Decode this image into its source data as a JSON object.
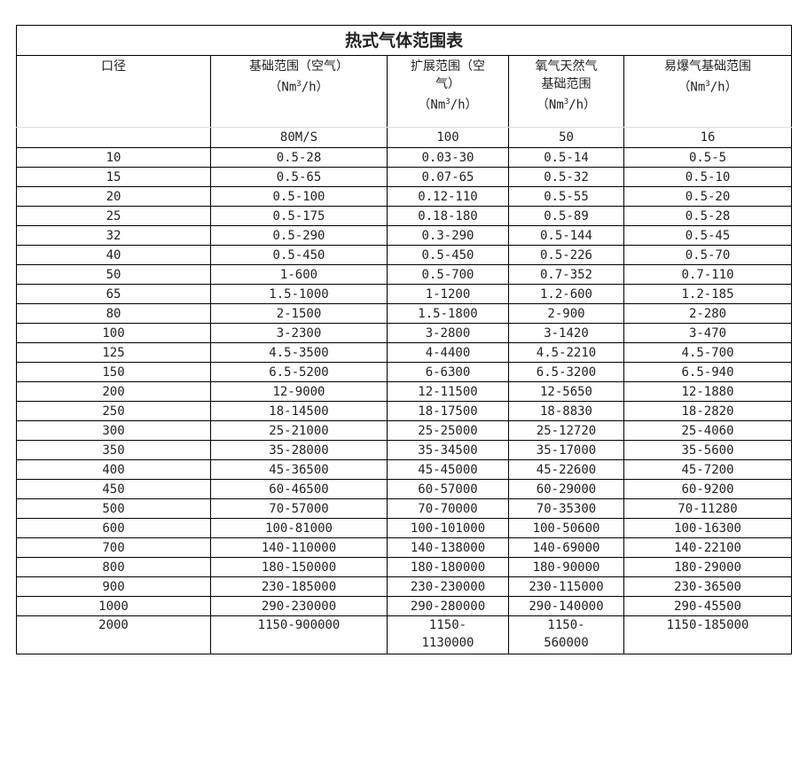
{
  "title": "热式气体范围表",
  "headers": [
    {
      "line1": "口径",
      "line2": ""
    },
    {
      "line1": "基础范围（空气）",
      "line2": "（Nm³/h）"
    },
    {
      "line1": "扩展范围（空",
      "line2": "气）",
      "line3": "（Nm³/h）"
    },
    {
      "line1": "氧气天然气",
      "line2": "基础范围",
      "line3": "（Nm³/h）"
    },
    {
      "line1": "易爆气基础范围",
      "line2": "（Nm³/h）"
    }
  ],
  "subheaders": [
    "",
    "80M/S",
    "100",
    "50",
    "16"
  ],
  "rows": [
    [
      "10",
      "0.5-28",
      "0.03-30",
      "0.5-14",
      "0.5-5"
    ],
    [
      "15",
      "0.5-65",
      "0.07-65",
      "0.5-32",
      "0.5-10"
    ],
    [
      "20",
      "0.5-100",
      "0.12-110",
      "0.5-55",
      "0.5-20"
    ],
    [
      "25",
      "0.5-175",
      "0.18-180",
      "0.5-89",
      "0.5-28"
    ],
    [
      "32",
      "0.5-290",
      "0.3-290",
      "0.5-144",
      "0.5-45"
    ],
    [
      "40",
      "0.5-450",
      "0.5-450",
      "0.5-226",
      "0.5-70"
    ],
    [
      "50",
      "1-600",
      "0.5-700",
      "0.7-352",
      "0.7-110"
    ],
    [
      "65",
      "1.5-1000",
      "1-1200",
      "1.2-600",
      "1.2-185"
    ],
    [
      "80",
      "2-1500",
      "1.5-1800",
      "2-900",
      "2-280"
    ],
    [
      "100",
      "3-2300",
      "3-2800",
      "3-1420",
      "3-470"
    ],
    [
      "125",
      "4.5-3500",
      "4-4400",
      "4.5-2210",
      "4.5-700"
    ],
    [
      "150",
      "6.5-5200",
      "6-6300",
      "6.5-3200",
      "6.5-940"
    ],
    [
      "200",
      "12-9000",
      "12-11500",
      "12-5650",
      "12-1880"
    ],
    [
      "250",
      "18-14500",
      "18-17500",
      "18-8830",
      "18-2820"
    ],
    [
      "300",
      "25-21000",
      "25-25000",
      "25-12720",
      "25-4060"
    ],
    [
      "350",
      "35-28000",
      "35-34500",
      "35-17000",
      "35-5600"
    ],
    [
      "400",
      "45-36500",
      "45-45000",
      "45-22600",
      "45-7200"
    ],
    [
      "450",
      "60-46500",
      "60-57000",
      "60-29000",
      "60-9200"
    ],
    [
      "500",
      "70-57000",
      "70-70000",
      "70-35300",
      "70-11280"
    ],
    [
      "600",
      "100-81000",
      "100-101000",
      "100-50600",
      "100-16300"
    ],
    [
      "700",
      "140-110000",
      "140-138000",
      "140-69000",
      "140-22100"
    ],
    [
      "800",
      "180-150000",
      "180-180000",
      "180-90000",
      "180-29000"
    ],
    [
      "900",
      "230-185000",
      "230-230000",
      "230-115000",
      "230-36500"
    ],
    [
      "1000",
      "290-230000",
      "290-280000",
      "290-140000",
      "290-45500"
    ]
  ],
  "last_row": [
    "2000",
    "1150-900000",
    "1150-\n1130000",
    "1150-\n560000",
    "1150-185000"
  ]
}
